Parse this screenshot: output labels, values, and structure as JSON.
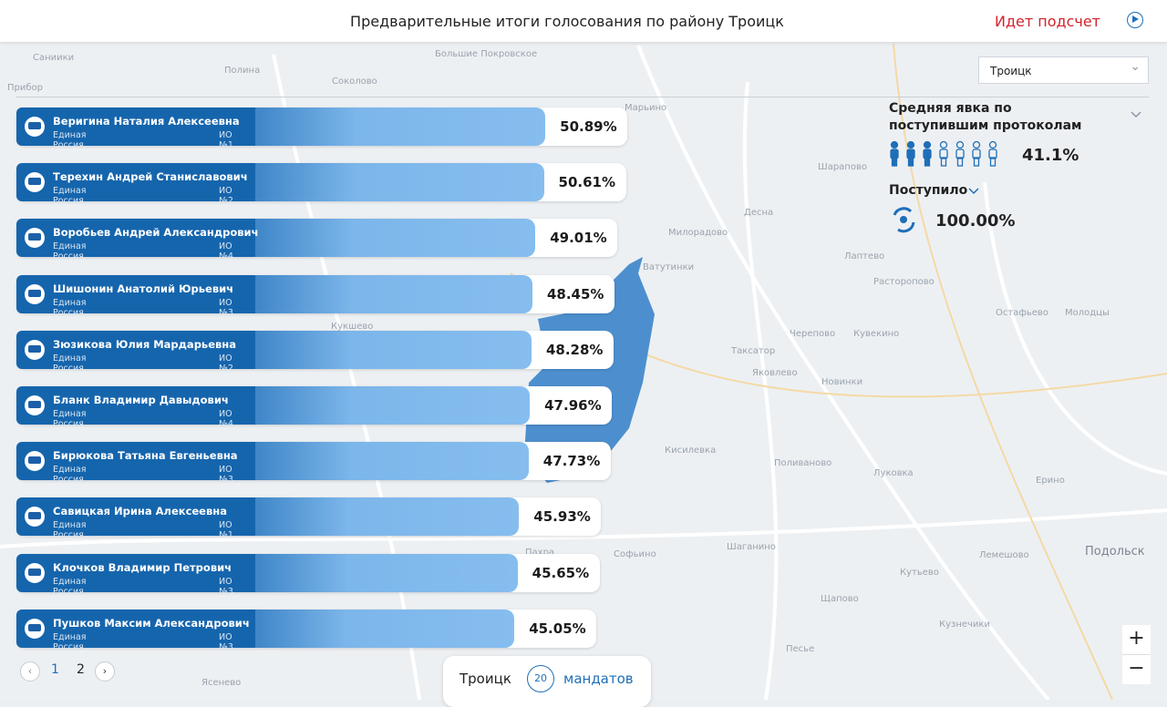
{
  "header": {
    "title": "Предварительные итоги голосования по району Троицк",
    "status": "Идет подсчет"
  },
  "district_select": "Троицк",
  "candidates": [
    {
      "name": "Веригина Наталия Алексеевна",
      "party": "Единая Россия",
      "district": "ИО №1",
      "value": 50.89,
      "value_label": "50.89%"
    },
    {
      "name": "Терехин Андрей Станиславович",
      "party": "Единая Россия",
      "district": "ИО №2",
      "value": 50.61,
      "value_label": "50.61%"
    },
    {
      "name": "Воробьев Андрей Александрович",
      "party": "Единая Россия",
      "district": "ИО №4",
      "value": 49.01,
      "value_label": "49.01%"
    },
    {
      "name": "Шишонин Анатолий Юрьевич",
      "party": "Единая Россия",
      "district": "ИО №3",
      "value": 48.45,
      "value_label": "48.45%"
    },
    {
      "name": "Зюзикова Юлия Мардарьевна",
      "party": "Единая Россия",
      "district": "ИО №2",
      "value": 48.28,
      "value_label": "48.28%"
    },
    {
      "name": "Бланк Владимир Давыдович",
      "party": "Единая Россия",
      "district": "ИО №4",
      "value": 47.96,
      "value_label": "47.96%"
    },
    {
      "name": "Бирюкова Татьяна Евгеньевна",
      "party": "Единая Россия",
      "district": "ИО №3",
      "value": 47.73,
      "value_label": "47.73%"
    },
    {
      "name": "Савицкая Ирина Алексеевна",
      "party": "Единая Россия",
      "district": "ИО №1",
      "value": 45.93,
      "value_label": "45.93%"
    },
    {
      "name": "Клочков Владимир Петрович",
      "party": "Единая Россия",
      "district": "ИО №3",
      "value": 45.65,
      "value_label": "45.65%"
    },
    {
      "name": "Пушков Максим Александрович",
      "party": "Единая Россия",
      "district": "ИО №3",
      "value": 45.05,
      "value_label": "45.05%"
    }
  ],
  "turnout": {
    "title": "Средняя явка по поступившим протоколам",
    "value": 41.1,
    "value_label": "41.1%"
  },
  "received": {
    "title": "Поступило",
    "value": 100,
    "value_label": "100.00%"
  },
  "pagination": [
    "1",
    "2"
  ],
  "mandates": {
    "district": "Троицк",
    "count": 20,
    "label": "мандатов"
  },
  "zoom": [
    "+",
    "−"
  ],
  "map_labels": [
    "Саниики",
    "Полина",
    "Прибор",
    "Соколово",
    "Большие Покровское",
    "Марьино",
    "Шарапово",
    "Милорадово",
    "Ватутинки",
    "Десна",
    "Лаптево",
    "Расторопово",
    "Кукшево",
    "Таксатор",
    "Яковлево",
    "Черепово",
    "Кувекино",
    "Новинки",
    "Кисилевка",
    "Поливаново",
    "Луковка",
    "Софьино",
    "Шаганино",
    "Кутьево",
    "Лемешово",
    "Подольск",
    "Остафьево",
    "Молодцы",
    "Ерино",
    "Пахра",
    "Щапово",
    "Кузнечики",
    "Песье",
    "Ясенево"
  ]
}
